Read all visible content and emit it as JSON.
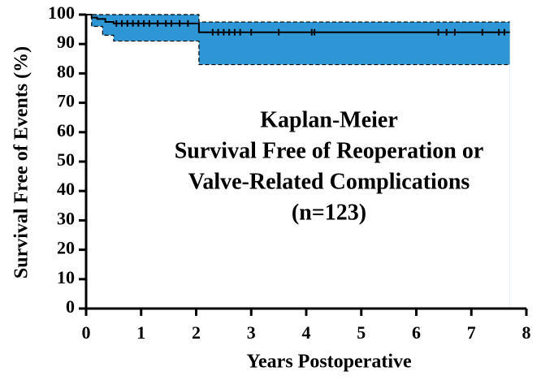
{
  "chart_data": {
    "type": "kaplan-meier",
    "xlabel": "Years Postoperative",
    "ylabel": "Survival Free of Events (%)",
    "annotation": [
      "Kaplan-Meier",
      "Survival Free of Reoperation or",
      "Valve-Related Complications",
      "(n=123)"
    ],
    "xlim": [
      0,
      8
    ],
    "xticks": [
      0,
      1,
      2,
      3,
      4,
      5,
      6,
      7,
      8
    ],
    "ylim": [
      0,
      100
    ],
    "yticks": [
      0,
      10,
      20,
      30,
      40,
      50,
      60,
      70,
      80,
      90,
      100
    ],
    "band_color": "#2e96d4",
    "series": [
      {
        "name": "Survival",
        "color": "#000000",
        "x": [
          0,
          0.1,
          0.2,
          0.35,
          0.5,
          2.05,
          7.7
        ],
        "values": [
          100,
          99,
          98.5,
          97.5,
          97,
          94,
          94
        ]
      },
      {
        "name": "Upper CI",
        "color": "#000000",
        "x": [
          0,
          2.05,
          7.7
        ],
        "values": [
          100,
          97.5,
          97.5
        ]
      },
      {
        "name": "Lower CI",
        "color": "#000000",
        "x": [
          0,
          0.1,
          0.3,
          0.5,
          2.05,
          7.7
        ],
        "values": [
          100,
          96,
          93,
          91,
          83,
          83
        ]
      }
    ],
    "censored": {
      "x": [
        0.55,
        0.65,
        0.75,
        0.85,
        0.95,
        1.05,
        1.15,
        1.3,
        1.45,
        1.55,
        1.7,
        1.85,
        2.3,
        2.4,
        2.5,
        2.6,
        2.7,
        2.8,
        3.0,
        3.5,
        4.1,
        4.15,
        6.4,
        6.55,
        6.7,
        7.2,
        7.5,
        7.6
      ],
      "values": [
        97,
        97,
        97,
        97,
        97,
        97,
        97,
        97,
        97,
        97,
        97,
        97,
        94,
        94,
        94,
        94,
        94,
        94,
        94,
        94,
        94,
        94,
        94,
        94,
        94,
        94,
        94,
        94
      ]
    }
  }
}
